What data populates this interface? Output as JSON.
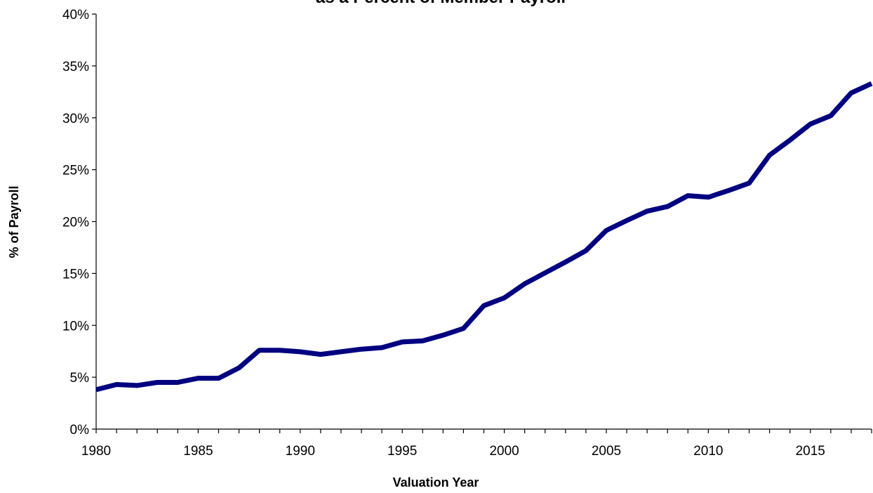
{
  "chart_data": {
    "type": "line",
    "title": "as a Percent of Member Payroll",
    "xlabel": "Valuation Year",
    "ylabel": "% of Payroll",
    "xlim": [
      1980,
      2018
    ],
    "ylim": [
      0,
      40
    ],
    "x_ticks": [
      1980,
      1985,
      1990,
      1995,
      2000,
      2005,
      2010,
      2015
    ],
    "x_tick_labels": [
      "1980",
      "1985",
      "1990",
      "1995",
      "2000",
      "2005",
      "2010",
      "2015"
    ],
    "y_ticks": [
      0,
      5,
      10,
      15,
      20,
      25,
      30,
      35,
      40
    ],
    "y_tick_labels": [
      "0%",
      "5%",
      "10%",
      "15%",
      "20%",
      "25%",
      "30%",
      "35%",
      "40%"
    ],
    "grid": false,
    "legend": "none",
    "series": [
      {
        "color": "#000080",
        "x": [
          1980,
          1981,
          1982,
          1983,
          1984,
          1985,
          1986,
          1987,
          1988,
          1989,
          1990,
          1991,
          1992,
          1993,
          1994,
          1995,
          1996,
          1997,
          1998,
          1999,
          2000,
          2001,
          2002,
          2003,
          2004,
          2005,
          2006,
          2007,
          2008,
          2009,
          2010,
          2011,
          2012,
          2013,
          2014,
          2015,
          2016,
          2017,
          2018
        ],
        "y": [
          3.8,
          4.3,
          4.2,
          4.5,
          4.5,
          4.9,
          4.9,
          5.9,
          7.6,
          7.6,
          7.45,
          7.2,
          7.45,
          7.7,
          7.85,
          8.4,
          8.5,
          9.05,
          9.7,
          11.9,
          12.65,
          14.0,
          15.05,
          16.1,
          17.2,
          19.15,
          20.1,
          21.0,
          21.45,
          22.5,
          22.35,
          23.0,
          23.7,
          26.4,
          27.85,
          29.4,
          30.2,
          32.4,
          33.3
        ]
      }
    ]
  }
}
